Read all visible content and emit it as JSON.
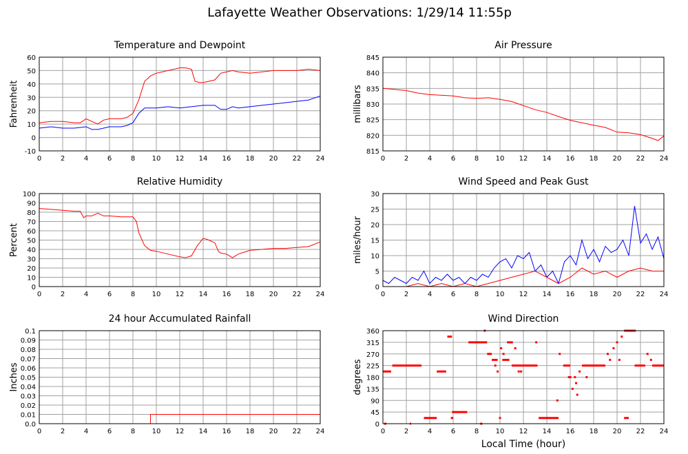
{
  "page_title": "Lafayette Weather Observations: 1/29/14 11:55p",
  "x_axis_title": "Local Time (hour)",
  "colors": {
    "primary": "#ff0000",
    "secondary": "#0000ff",
    "grid": "#a0a0a0"
  },
  "chart_data": [
    {
      "id": "temp",
      "type": "line",
      "title": "Temperature and Dewpoint",
      "ylabel": "Fahrenheit",
      "xlabel": "",
      "xlim": [
        0,
        24
      ],
      "ylim": [
        -10,
        60
      ],
      "xticks": [
        "0",
        "2",
        "4",
        "6",
        "8",
        "10",
        "12",
        "14",
        "16",
        "18",
        "20",
        "22",
        "24"
      ],
      "yticks": [
        "-10",
        "0",
        "10",
        "20",
        "30",
        "40",
        "50",
        "60"
      ],
      "grid": true,
      "series": [
        {
          "color": "#ff0000",
          "x": [
            0,
            1,
            2,
            3,
            3.5,
            4,
            4.5,
            5,
            5.5,
            6,
            7,
            7.5,
            8,
            8.5,
            9,
            9.5,
            10,
            10.5,
            11,
            11.5,
            12,
            12.5,
            13,
            13.3,
            13.7,
            14,
            15,
            15.5,
            16,
            16.5,
            17,
            18,
            19,
            20,
            21,
            22,
            23,
            24
          ],
          "y": [
            11,
            12,
            12,
            11,
            11,
            14,
            12,
            10,
            13,
            14,
            14,
            15,
            18,
            28,
            42,
            46,
            48,
            49,
            50,
            51,
            52,
            52,
            51,
            42,
            41,
            41,
            43,
            48,
            49,
            50,
            49,
            48,
            49,
            50,
            50,
            50,
            51,
            50
          ]
        },
        {
          "color": "#0000ff",
          "x": [
            0,
            1,
            2,
            3,
            4,
            4.5,
            5,
            5.5,
            6,
            7,
            7.5,
            8,
            8.5,
            9,
            10,
            11,
            12,
            13,
            14,
            15,
            15.5,
            16,
            16.5,
            17,
            18,
            19,
            20,
            21,
            22,
            23,
            24
          ],
          "y": [
            7,
            8,
            7,
            7,
            8,
            6,
            6,
            7,
            8,
            8,
            9,
            11,
            18,
            22,
            22,
            23,
            22,
            23,
            24,
            24,
            21,
            21,
            23,
            22,
            23,
            24,
            25,
            26,
            27,
            28,
            31
          ]
        }
      ]
    },
    {
      "id": "pressure",
      "type": "line",
      "title": "Air Pressure",
      "ylabel": "millibars",
      "xlabel": "",
      "xlim": [
        0,
        24
      ],
      "ylim": [
        815,
        845
      ],
      "xticks": [
        "0",
        "2",
        "4",
        "6",
        "8",
        "10",
        "12",
        "14",
        "16",
        "18",
        "20",
        "22",
        "24"
      ],
      "yticks": [
        "815",
        "820",
        "825",
        "830",
        "835",
        "840",
        "845"
      ],
      "grid": true,
      "series": [
        {
          "color": "#ff0000",
          "x": [
            0,
            1,
            2,
            3,
            4,
            5,
            6,
            7,
            8,
            9,
            10,
            11,
            12,
            13,
            14,
            15,
            16,
            17,
            18,
            19,
            20,
            21,
            22,
            23,
            23.5,
            24
          ],
          "y": [
            835,
            834.7,
            834.3,
            833.5,
            833,
            832.8,
            832.6,
            832,
            831.8,
            832,
            831.5,
            830.8,
            829.5,
            828.2,
            827.3,
            826,
            824.8,
            824,
            823.2,
            822.5,
            821,
            820.8,
            820.2,
            819,
            818.3,
            819.8
          ]
        }
      ]
    },
    {
      "id": "humidity",
      "type": "line",
      "title": "Relative Humidity",
      "ylabel": "Percent",
      "xlabel": "",
      "xlim": [
        0,
        24
      ],
      "ylim": [
        0,
        100
      ],
      "xticks": [
        "0",
        "2",
        "4",
        "6",
        "8",
        "10",
        "12",
        "14",
        "16",
        "18",
        "20",
        "22",
        "24"
      ],
      "yticks": [
        "0",
        "10",
        "20",
        "30",
        "40",
        "50",
        "60",
        "70",
        "80",
        "90",
        "100"
      ],
      "grid": true,
      "series": [
        {
          "color": "#ff0000",
          "x": [
            0,
            1,
            2,
            3,
            3.5,
            3.8,
            4,
            4.5,
            5,
            5.5,
            6,
            7,
            8,
            8.3,
            8.5,
            9,
            9.5,
            10,
            11,
            12,
            12.5,
            13,
            13.5,
            14,
            14.5,
            15,
            15.3,
            15.5,
            16,
            16.5,
            17,
            17.5,
            18,
            19,
            20,
            21,
            22,
            23,
            24
          ],
          "y": [
            84,
            83,
            82,
            81,
            81,
            74,
            76,
            76,
            79,
            76,
            76,
            75,
            75,
            70,
            58,
            44,
            39,
            38,
            35,
            32,
            31,
            33,
            44,
            52,
            50,
            47,
            38,
            36,
            35,
            31,
            35,
            37,
            39,
            40,
            41,
            41,
            42,
            43,
            48
          ]
        }
      ]
    },
    {
      "id": "wind",
      "type": "line",
      "title": "Wind Speed and Peak Gust",
      "ylabel": "miles/hour",
      "xlabel": "",
      "xlim": [
        0,
        24
      ],
      "ylim": [
        0,
        30
      ],
      "xticks": [
        "0",
        "2",
        "4",
        "6",
        "8",
        "10",
        "12",
        "14",
        "16",
        "18",
        "20",
        "22",
        "24"
      ],
      "yticks": [
        "0",
        "5",
        "10",
        "15",
        "20",
        "25",
        "30"
      ],
      "grid": true,
      "series": [
        {
          "color": "#0000ff",
          "x": [
            0,
            0.5,
            1,
            1.5,
            2,
            2.5,
            3,
            3.5,
            4,
            4.5,
            5,
            5.5,
            6,
            6.5,
            7,
            7.5,
            8,
            8.5,
            9,
            9.5,
            10,
            10.5,
            11,
            11.5,
            12,
            12.5,
            13,
            13.5,
            14,
            14.5,
            15,
            15.5,
            16,
            16.5,
            17,
            17.5,
            18,
            18.5,
            19,
            19.5,
            20,
            20.5,
            21,
            21.5,
            22,
            22.5,
            23,
            23.5,
            24
          ],
          "y": [
            2,
            1,
            3,
            2,
            1,
            3,
            2,
            5,
            1,
            3,
            2,
            4,
            2,
            3,
            1,
            3,
            2,
            4,
            3,
            6,
            8,
            9,
            6,
            10,
            9,
            11,
            5,
            7,
            3,
            5,
            1,
            8,
            10,
            7,
            15,
            9,
            12,
            8,
            13,
            11,
            12,
            15,
            10,
            26,
            14,
            17,
            12,
            16,
            9
          ]
        },
        {
          "color": "#ff0000",
          "x": [
            0,
            1,
            2,
            3,
            4,
            5,
            6,
            7,
            8,
            9,
            10,
            11,
            12,
            13,
            14,
            15,
            16,
            17,
            18,
            19,
            20,
            21,
            22,
            23,
            24
          ],
          "y": [
            0,
            0,
            0,
            1,
            0,
            1,
            0,
            1,
            0,
            1,
            2,
            3,
            4,
            5,
            3,
            1,
            3,
            6,
            4,
            5,
            3,
            5,
            6,
            5,
            5
          ]
        }
      ]
    },
    {
      "id": "rain",
      "type": "line",
      "title": "24 hour Accumulated Rainfall",
      "ylabel": "Inches",
      "xlabel": "",
      "xlim": [
        0,
        24
      ],
      "ylim": [
        0,
        0.1
      ],
      "xticks": [
        "0",
        "2",
        "4",
        "6",
        "8",
        "10",
        "12",
        "14",
        "16",
        "18",
        "20",
        "22",
        "24"
      ],
      "yticks": [
        "0.0",
        "0.01",
        "0.02",
        "0.03",
        "0.04",
        "0.05",
        "0.06",
        "0.07",
        "0.08",
        "0.09",
        "0.1"
      ],
      "grid": true,
      "series": [
        {
          "color": "#ff0000",
          "x": [
            0,
            9.5,
            9.5,
            24
          ],
          "y": [
            0,
            0,
            0.01,
            0.01
          ]
        }
      ]
    },
    {
      "id": "direction",
      "type": "scatter",
      "title": "Wind Direction",
      "ylabel": "degrees",
      "xlabel": "Local Time (hour)",
      "xlim": [
        0,
        24
      ],
      "ylim": [
        0,
        360
      ],
      "xticks": [
        "0",
        "2",
        "4",
        "6",
        "8",
        "10",
        "12",
        "14",
        "16",
        "18",
        "20",
        "22",
        "24"
      ],
      "yticks": [
        "0",
        "45",
        "90",
        "135",
        "180",
        "225",
        "270",
        "315",
        "360"
      ],
      "grid": true,
      "segments": [
        {
          "y": 202,
          "x0": 0,
          "x1": 0.7
        },
        {
          "y": 225,
          "x0": 0.8,
          "x1": 3.3
        },
        {
          "y": 0,
          "x0": 2.3,
          "x1": 2.4
        },
        {
          "y": 22,
          "x0": 3.5,
          "x1": 4.6
        },
        {
          "y": 202,
          "x0": 4.6,
          "x1": 5.4
        },
        {
          "y": 337,
          "x0": 5.5,
          "x1": 5.9
        },
        {
          "y": 45,
          "x0": 5.9,
          "x1": 7.2
        },
        {
          "y": 22,
          "x0": 5.8,
          "x1": 6.0
        },
        {
          "y": 315,
          "x0": 7.3,
          "x1": 8.9
        },
        {
          "y": 270,
          "x0": 8.9,
          "x1": 9.3
        },
        {
          "y": 247,
          "x0": 9.3,
          "x1": 9.8
        },
        {
          "y": 247,
          "x0": 10.2,
          "x1": 10.8
        },
        {
          "y": 315,
          "x0": 10.6,
          "x1": 11.1
        },
        {
          "y": 225,
          "x0": 11.0,
          "x1": 13.2
        },
        {
          "y": 22,
          "x0": 13.3,
          "x1": 15.0
        },
        {
          "y": 225,
          "x0": 15.4,
          "x1": 16.0
        },
        {
          "y": 180,
          "x0": 15.8,
          "x1": 16.1
        },
        {
          "y": 225,
          "x0": 17.0,
          "x1": 19.0
        },
        {
          "y": 225,
          "x0": 21.5,
          "x1": 22.4
        },
        {
          "y": 360,
          "x0": 20.6,
          "x1": 21.6
        },
        {
          "y": 22,
          "x0": 20.6,
          "x1": 21.0
        },
        {
          "y": 225,
          "x0": 23.0,
          "x1": 24.0
        }
      ],
      "points": [
        {
          "x": 0.2,
          "y": 0
        },
        {
          "x": 8.4,
          "y": 0
        },
        {
          "x": 8.7,
          "y": 360
        },
        {
          "x": 9.6,
          "y": 225
        },
        {
          "x": 9.8,
          "y": 202
        },
        {
          "x": 10.0,
          "y": 22
        },
        {
          "x": 10.1,
          "y": 292
        },
        {
          "x": 10.3,
          "y": 270
        },
        {
          "x": 11.3,
          "y": 292
        },
        {
          "x": 11.6,
          "y": 202
        },
        {
          "x": 11.8,
          "y": 202
        },
        {
          "x": 13.1,
          "y": 315
        },
        {
          "x": 14.9,
          "y": 90
        },
        {
          "x": 15.1,
          "y": 270
        },
        {
          "x": 16.2,
          "y": 135
        },
        {
          "x": 16.4,
          "y": 180
        },
        {
          "x": 16.5,
          "y": 157
        },
        {
          "x": 16.6,
          "y": 112
        },
        {
          "x": 16.8,
          "y": 202
        },
        {
          "x": 17.4,
          "y": 180
        },
        {
          "x": 19.2,
          "y": 270
        },
        {
          "x": 19.4,
          "y": 247
        },
        {
          "x": 19.7,
          "y": 292
        },
        {
          "x": 20.0,
          "y": 315
        },
        {
          "x": 20.2,
          "y": 247
        },
        {
          "x": 20.4,
          "y": 337
        },
        {
          "x": 22.6,
          "y": 270
        },
        {
          "x": 22.9,
          "y": 247
        }
      ]
    }
  ]
}
